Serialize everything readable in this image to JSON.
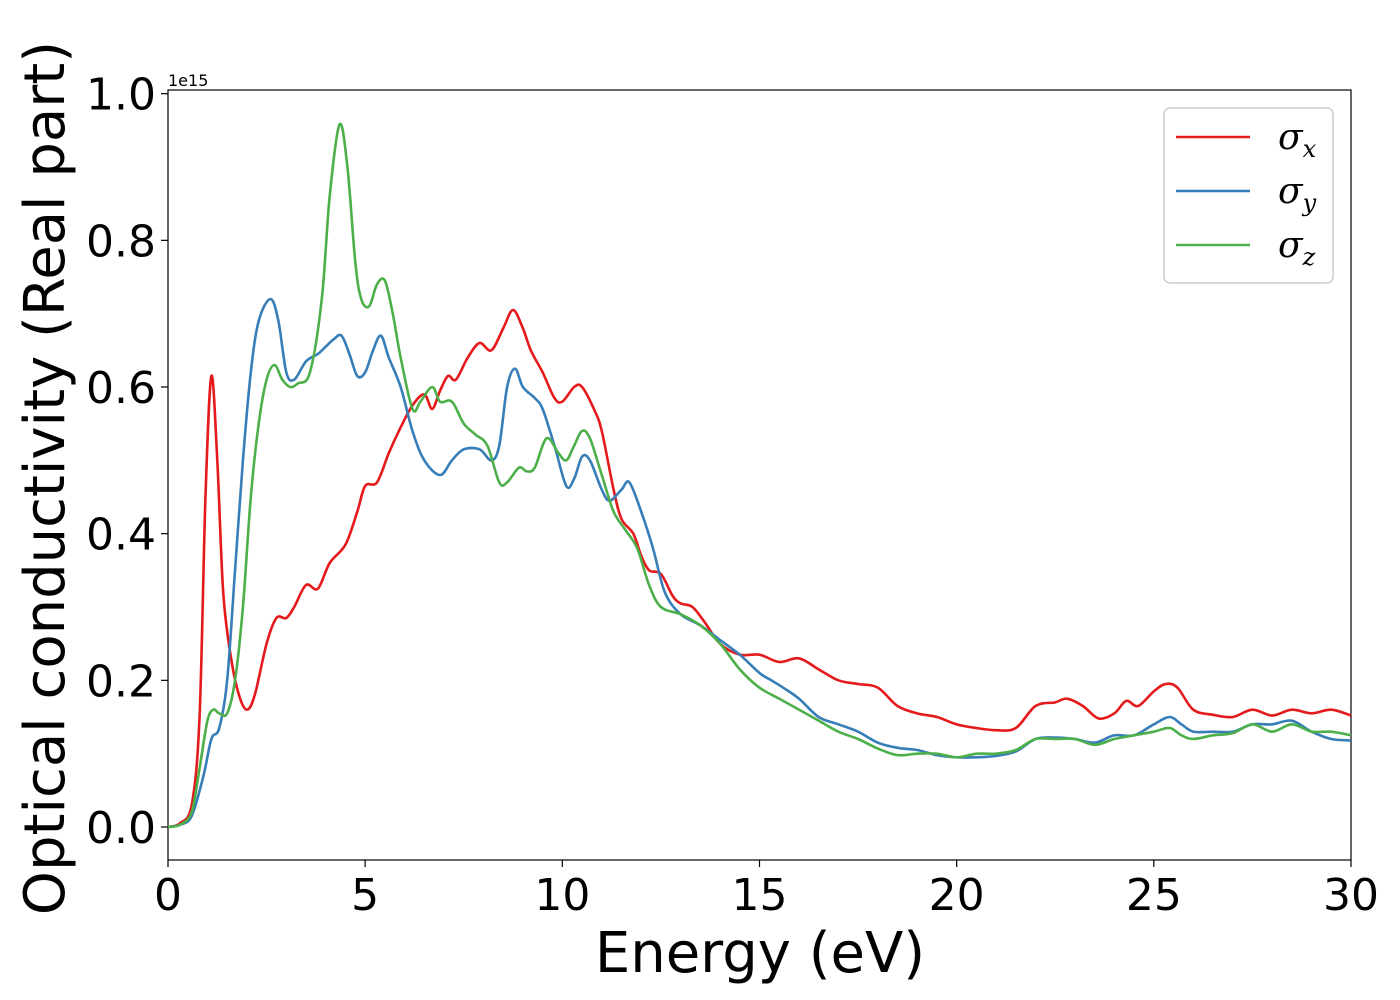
{
  "chart_data": {
    "type": "line",
    "title": "",
    "xlabel": "Energy (eV)",
    "ylabel": "Optical conductivity (Real part)",
    "y_offset_label": "1e15",
    "xlim": [
      0,
      30
    ],
    "ylim": [
      -0.045,
      1.005
    ],
    "x_ticks": [
      0,
      5,
      10,
      15,
      20,
      25,
      30
    ],
    "x_tick_labels": [
      "0",
      "5",
      "10",
      "15",
      "20",
      "25",
      "30"
    ],
    "y_ticks": [
      0.0,
      0.2,
      0.4,
      0.6,
      0.8,
      1.0
    ],
    "y_tick_labels": [
      "0.0",
      "0.2",
      "0.4",
      "0.6",
      "0.8",
      "1.0"
    ],
    "grid": false,
    "legend_position": "top-right",
    "series": [
      {
        "name": "σx",
        "legend_symbol": "σ",
        "legend_sub": "x",
        "color": "#e41a1c",
        "points": [
          [
            0,
            0
          ],
          [
            0.3,
            0.005
          ],
          [
            0.6,
            0.03
          ],
          [
            0.8,
            0.15
          ],
          [
            0.95,
            0.45
          ],
          [
            1.1,
            0.615
          ],
          [
            1.25,
            0.5
          ],
          [
            1.4,
            0.32
          ],
          [
            1.6,
            0.23
          ],
          [
            1.8,
            0.18
          ],
          [
            2.0,
            0.16
          ],
          [
            2.2,
            0.18
          ],
          [
            2.5,
            0.25
          ],
          [
            2.75,
            0.285
          ],
          [
            3.0,
            0.285
          ],
          [
            3.2,
            0.3
          ],
          [
            3.5,
            0.33
          ],
          [
            3.8,
            0.325
          ],
          [
            4.1,
            0.36
          ],
          [
            4.5,
            0.385
          ],
          [
            4.8,
            0.43
          ],
          [
            5.0,
            0.465
          ],
          [
            5.3,
            0.47
          ],
          [
            5.6,
            0.51
          ],
          [
            5.9,
            0.545
          ],
          [
            6.2,
            0.575
          ],
          [
            6.5,
            0.59
          ],
          [
            6.7,
            0.57
          ],
          [
            6.9,
            0.595
          ],
          [
            7.1,
            0.615
          ],
          [
            7.3,
            0.61
          ],
          [
            7.6,
            0.64
          ],
          [
            7.9,
            0.66
          ],
          [
            8.2,
            0.65
          ],
          [
            8.5,
            0.68
          ],
          [
            8.75,
            0.705
          ],
          [
            9.0,
            0.68
          ],
          [
            9.2,
            0.65
          ],
          [
            9.5,
            0.62
          ],
          [
            9.8,
            0.585
          ],
          [
            10.0,
            0.58
          ],
          [
            10.3,
            0.6
          ],
          [
            10.5,
            0.6
          ],
          [
            10.8,
            0.57
          ],
          [
            11.0,
            0.54
          ],
          [
            11.3,
            0.46
          ],
          [
            11.5,
            0.42
          ],
          [
            11.8,
            0.4
          ],
          [
            12.0,
            0.37
          ],
          [
            12.2,
            0.35
          ],
          [
            12.5,
            0.345
          ],
          [
            12.8,
            0.315
          ],
          [
            13.0,
            0.305
          ],
          [
            13.3,
            0.3
          ],
          [
            13.6,
            0.28
          ],
          [
            14.0,
            0.25
          ],
          [
            14.5,
            0.235
          ],
          [
            15.0,
            0.235
          ],
          [
            15.5,
            0.225
          ],
          [
            16.0,
            0.23
          ],
          [
            16.5,
            0.215
          ],
          [
            17.0,
            0.2
          ],
          [
            17.5,
            0.195
          ],
          [
            18.0,
            0.19
          ],
          [
            18.5,
            0.165
          ],
          [
            19.0,
            0.155
          ],
          [
            19.5,
            0.15
          ],
          [
            20.0,
            0.14
          ],
          [
            20.5,
            0.135
          ],
          [
            21.0,
            0.132
          ],
          [
            21.5,
            0.135
          ],
          [
            22.0,
            0.165
          ],
          [
            22.5,
            0.17
          ],
          [
            22.8,
            0.175
          ],
          [
            23.2,
            0.165
          ],
          [
            23.6,
            0.148
          ],
          [
            24.0,
            0.155
          ],
          [
            24.3,
            0.172
          ],
          [
            24.6,
            0.165
          ],
          [
            25.0,
            0.185
          ],
          [
            25.3,
            0.195
          ],
          [
            25.6,
            0.19
          ],
          [
            26.0,
            0.16
          ],
          [
            26.5,
            0.153
          ],
          [
            27.0,
            0.15
          ],
          [
            27.5,
            0.16
          ],
          [
            28.0,
            0.152
          ],
          [
            28.5,
            0.16
          ],
          [
            29.0,
            0.155
          ],
          [
            29.5,
            0.16
          ],
          [
            30.0,
            0.152
          ]
        ]
      },
      {
        "name": "σy",
        "legend_symbol": "σ",
        "legend_sub": "y",
        "color": "#377eb8",
        "points": [
          [
            0,
            0
          ],
          [
            0.3,
            0.003
          ],
          [
            0.6,
            0.015
          ],
          [
            0.9,
            0.07
          ],
          [
            1.1,
            0.12
          ],
          [
            1.3,
            0.135
          ],
          [
            1.5,
            0.2
          ],
          [
            1.7,
            0.35
          ],
          [
            1.9,
            0.5
          ],
          [
            2.1,
            0.62
          ],
          [
            2.3,
            0.69
          ],
          [
            2.6,
            0.72
          ],
          [
            2.8,
            0.69
          ],
          [
            3.0,
            0.62
          ],
          [
            3.2,
            0.61
          ],
          [
            3.5,
            0.635
          ],
          [
            3.8,
            0.645
          ],
          [
            4.0,
            0.655
          ],
          [
            4.2,
            0.665
          ],
          [
            4.4,
            0.67
          ],
          [
            4.6,
            0.645
          ],
          [
            4.8,
            0.615
          ],
          [
            5.0,
            0.62
          ],
          [
            5.2,
            0.65
          ],
          [
            5.4,
            0.67
          ],
          [
            5.6,
            0.64
          ],
          [
            5.9,
            0.6
          ],
          [
            6.2,
            0.54
          ],
          [
            6.5,
            0.5
          ],
          [
            6.9,
            0.48
          ],
          [
            7.2,
            0.5
          ],
          [
            7.5,
            0.515
          ],
          [
            7.9,
            0.515
          ],
          [
            8.2,
            0.5
          ],
          [
            8.4,
            0.52
          ],
          [
            8.6,
            0.6
          ],
          [
            8.8,
            0.625
          ],
          [
            9.0,
            0.6
          ],
          [
            9.3,
            0.585
          ],
          [
            9.5,
            0.57
          ],
          [
            9.8,
            0.52
          ],
          [
            10.1,
            0.465
          ],
          [
            10.3,
            0.475
          ],
          [
            10.5,
            0.505
          ],
          [
            10.7,
            0.5
          ],
          [
            11.0,
            0.46
          ],
          [
            11.2,
            0.445
          ],
          [
            11.5,
            0.46
          ],
          [
            11.7,
            0.47
          ],
          [
            12.0,
            0.43
          ],
          [
            12.3,
            0.38
          ],
          [
            12.6,
            0.32
          ],
          [
            13.0,
            0.29
          ],
          [
            13.5,
            0.275
          ],
          [
            14.0,
            0.255
          ],
          [
            14.5,
            0.235
          ],
          [
            15.0,
            0.21
          ],
          [
            15.3,
            0.2
          ],
          [
            15.6,
            0.19
          ],
          [
            16.0,
            0.175
          ],
          [
            16.5,
            0.15
          ],
          [
            17.0,
            0.14
          ],
          [
            17.5,
            0.13
          ],
          [
            18.0,
            0.115
          ],
          [
            18.5,
            0.108
          ],
          [
            19.0,
            0.105
          ],
          [
            19.5,
            0.098
          ],
          [
            20.0,
            0.095
          ],
          [
            20.5,
            0.095
          ],
          [
            21.0,
            0.097
          ],
          [
            21.5,
            0.103
          ],
          [
            22.0,
            0.12
          ],
          [
            22.5,
            0.122
          ],
          [
            23.0,
            0.12
          ],
          [
            23.5,
            0.115
          ],
          [
            24.0,
            0.125
          ],
          [
            24.5,
            0.125
          ],
          [
            25.0,
            0.14
          ],
          [
            25.4,
            0.15
          ],
          [
            25.7,
            0.14
          ],
          [
            26.0,
            0.13
          ],
          [
            26.5,
            0.13
          ],
          [
            27.0,
            0.13
          ],
          [
            27.5,
            0.14
          ],
          [
            28.0,
            0.14
          ],
          [
            28.5,
            0.145
          ],
          [
            29.0,
            0.13
          ],
          [
            29.5,
            0.12
          ],
          [
            30.0,
            0.118
          ]
        ]
      },
      {
        "name": "σz",
        "legend_symbol": "σ",
        "legend_sub": "z",
        "color": "#4daf4a",
        "points": [
          [
            0,
            0
          ],
          [
            0.3,
            0.003
          ],
          [
            0.6,
            0.02
          ],
          [
            0.8,
            0.08
          ],
          [
            1.0,
            0.145
          ],
          [
            1.15,
            0.16
          ],
          [
            1.3,
            0.155
          ],
          [
            1.5,
            0.155
          ],
          [
            1.7,
            0.2
          ],
          [
            1.9,
            0.3
          ],
          [
            2.1,
            0.45
          ],
          [
            2.3,
            0.55
          ],
          [
            2.5,
            0.61
          ],
          [
            2.7,
            0.63
          ],
          [
            2.9,
            0.61
          ],
          [
            3.1,
            0.6
          ],
          [
            3.3,
            0.605
          ],
          [
            3.6,
            0.62
          ],
          [
            3.9,
            0.72
          ],
          [
            4.1,
            0.86
          ],
          [
            4.35,
            0.958
          ],
          [
            4.55,
            0.9
          ],
          [
            4.75,
            0.77
          ],
          [
            4.9,
            0.72
          ],
          [
            5.1,
            0.71
          ],
          [
            5.3,
            0.74
          ],
          [
            5.5,
            0.745
          ],
          [
            5.7,
            0.7
          ],
          [
            5.9,
            0.64
          ],
          [
            6.2,
            0.57
          ],
          [
            6.4,
            0.58
          ],
          [
            6.7,
            0.6
          ],
          [
            6.9,
            0.58
          ],
          [
            7.2,
            0.58
          ],
          [
            7.5,
            0.55
          ],
          [
            7.8,
            0.535
          ],
          [
            8.1,
            0.52
          ],
          [
            8.4,
            0.47
          ],
          [
            8.6,
            0.47
          ],
          [
            8.9,
            0.49
          ],
          [
            9.1,
            0.485
          ],
          [
            9.3,
            0.49
          ],
          [
            9.6,
            0.53
          ],
          [
            9.9,
            0.51
          ],
          [
            10.1,
            0.5
          ],
          [
            10.3,
            0.52
          ],
          [
            10.5,
            0.54
          ],
          [
            10.7,
            0.53
          ],
          [
            11.0,
            0.48
          ],
          [
            11.3,
            0.43
          ],
          [
            11.6,
            0.405
          ],
          [
            11.9,
            0.38
          ],
          [
            12.2,
            0.33
          ],
          [
            12.5,
            0.3
          ],
          [
            13.0,
            0.29
          ],
          [
            13.5,
            0.275
          ],
          [
            14.0,
            0.25
          ],
          [
            14.5,
            0.215
          ],
          [
            15.0,
            0.19
          ],
          [
            15.5,
            0.175
          ],
          [
            16.0,
            0.16
          ],
          [
            16.5,
            0.145
          ],
          [
            17.0,
            0.13
          ],
          [
            17.5,
            0.12
          ],
          [
            18.0,
            0.107
          ],
          [
            18.5,
            0.098
          ],
          [
            19.0,
            0.1
          ],
          [
            19.5,
            0.1
          ],
          [
            20.0,
            0.095
          ],
          [
            20.5,
            0.1
          ],
          [
            21.0,
            0.1
          ],
          [
            21.5,
            0.105
          ],
          [
            22.0,
            0.12
          ],
          [
            22.5,
            0.12
          ],
          [
            23.0,
            0.12
          ],
          [
            23.5,
            0.112
          ],
          [
            24.0,
            0.12
          ],
          [
            24.5,
            0.125
          ],
          [
            25.0,
            0.13
          ],
          [
            25.4,
            0.135
          ],
          [
            25.7,
            0.125
          ],
          [
            26.0,
            0.12
          ],
          [
            26.5,
            0.125
          ],
          [
            27.0,
            0.128
          ],
          [
            27.5,
            0.14
          ],
          [
            28.0,
            0.13
          ],
          [
            28.5,
            0.14
          ],
          [
            29.0,
            0.13
          ],
          [
            29.5,
            0.13
          ],
          [
            30.0,
            0.125
          ]
        ]
      }
    ]
  }
}
